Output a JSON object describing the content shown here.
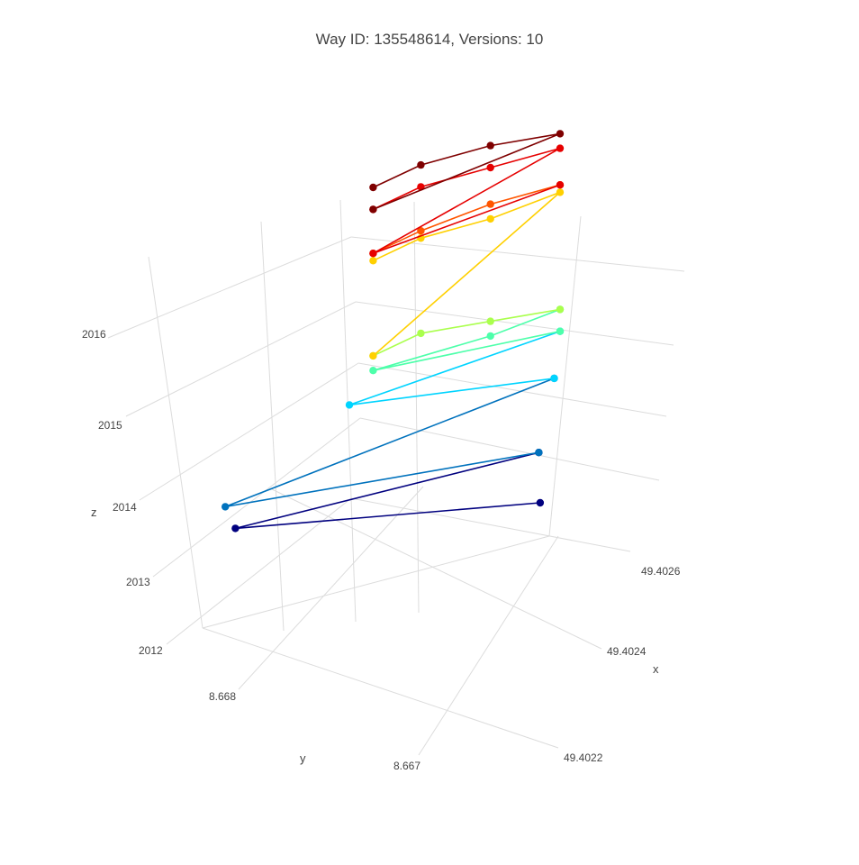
{
  "chart_data": {
    "type": "line3d",
    "title": "Way ID: 135548614, Versions: 10",
    "axes": {
      "x": {
        "label": "x",
        "ticks": [
          "49.4022",
          "49.4024",
          "49.4026"
        ]
      },
      "y": {
        "label": "y",
        "ticks": [
          "8.667",
          "8.668"
        ]
      },
      "z": {
        "label": "z",
        "ticks": [
          "2012",
          "2013",
          "2014",
          "2015",
          "2016"
        ]
      }
    },
    "grid": true,
    "legend": "none",
    "series": [
      {
        "color": "#00007f",
        "points": [
          [
            49.40265,
            8.6685,
            2012.3
          ],
          [
            49.40228,
            8.6679,
            2012.9
          ],
          [
            49.40268,
            8.6672,
            2013.1
          ]
        ]
      },
      {
        "color": "#0072bd",
        "points": [
          [
            49.40268,
            8.6672,
            2013.1
          ],
          [
            49.40226,
            8.6682,
            2013.2
          ],
          [
            49.40268,
            8.668,
            2014.0
          ]
        ]
      },
      {
        "color": "#00d4ff",
        "points": [
          [
            49.40268,
            8.668,
            2014.0
          ],
          [
            49.40238,
            8.6697,
            2014.1
          ],
          [
            49.40268,
            8.6683,
            2014.6
          ]
        ]
      },
      {
        "color": "#4dffaa",
        "points": [
          [
            49.40268,
            8.6683,
            2014.6
          ],
          [
            49.40241,
            8.6697,
            2014.5
          ],
          [
            49.40258,
            8.6688,
            2014.7
          ],
          [
            49.40268,
            8.6683,
            2014.9
          ]
        ]
      },
      {
        "color": "#aaff4d",
        "points": [
          [
            49.40268,
            8.6683,
            2014.9
          ],
          [
            49.40258,
            8.6688,
            2014.9
          ],
          [
            49.40248,
            8.6693,
            2014.9
          ],
          [
            49.40241,
            8.6697,
            2014.7
          ]
        ]
      },
      {
        "color": "#ffd000",
        "points": [
          [
            49.40241,
            8.6697,
            2014.7
          ],
          [
            49.40268,
            8.6683,
            2016.5
          ],
          [
            49.40258,
            8.6688,
            2016.3
          ],
          [
            49.40248,
            8.6693,
            2016.2
          ],
          [
            49.40241,
            8.6697,
            2016.0
          ]
        ]
      },
      {
        "color": "#ff5500",
        "points": [
          [
            49.40241,
            8.6697,
            2016.1
          ],
          [
            49.40248,
            8.6693,
            2016.3
          ],
          [
            49.40258,
            8.6688,
            2016.5
          ],
          [
            49.40268,
            8.6683,
            2016.6
          ]
        ]
      },
      {
        "color": "#e60000",
        "points": [
          [
            49.40268,
            8.6683,
            2016.6
          ],
          [
            49.40241,
            8.6697,
            2016.1
          ],
          [
            49.40268,
            8.6683,
            2017.1
          ],
          [
            49.40258,
            8.6688,
            2017.0
          ],
          [
            49.40248,
            8.6693,
            2016.9
          ],
          [
            49.40241,
            8.6697,
            2016.7
          ]
        ]
      },
      {
        "color": "#7f0000",
        "points": [
          [
            49.40241,
            8.6697,
            2016.7
          ],
          [
            49.40268,
            8.6683,
            2017.3
          ],
          [
            49.40258,
            8.6688,
            2017.3
          ],
          [
            49.40248,
            8.6693,
            2017.2
          ],
          [
            49.40241,
            8.6697,
            2017.0
          ]
        ]
      }
    ]
  }
}
